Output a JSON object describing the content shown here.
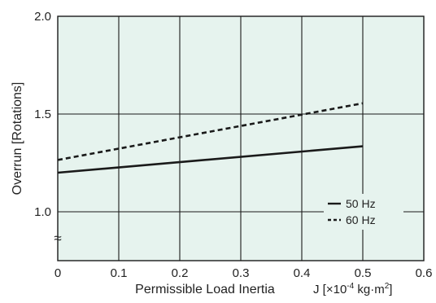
{
  "chart_data": {
    "type": "line",
    "xlabel": "Permissible Load Inertia",
    "unit_prefix": "J [",
    "unit_main": "×10",
    "unit_exp": "-4",
    "unit_mid": " kg·m",
    "unit_exp2": "2",
    "unit_end": "]",
    "ylabel": "Overrun [Rotations]",
    "xlim": [
      0,
      0.6
    ],
    "ylim": [
      0.75,
      2.0
    ],
    "y_axis_break": true,
    "x_ticks": [
      0,
      0.1,
      0.2,
      0.3,
      0.4,
      0.5,
      0.6
    ],
    "x_tick_labels": [
      "0",
      "0.1",
      "0.2",
      "0.3",
      "0.4",
      "0.5",
      "0.6"
    ],
    "y_ticks": [
      1.0,
      1.5,
      2.0
    ],
    "y_tick_labels": [
      "1.0",
      "1.5",
      "2.0"
    ],
    "grid": true,
    "legend_position": "lower-right",
    "series": [
      {
        "name": "50 Hz",
        "style": "solid",
        "x": [
          0,
          0.5
        ],
        "y": [
          1.2,
          1.335
        ]
      },
      {
        "name": "60 Hz",
        "style": "dashed",
        "x": [
          0,
          0.5
        ],
        "y": [
          1.265,
          1.555
        ]
      }
    ]
  },
  "colors": {
    "plot_background": "#e6f3ee",
    "grid": "#1a1a1a",
    "line": "#1a1a1a"
  },
  "axis_break_symbol": "≈"
}
